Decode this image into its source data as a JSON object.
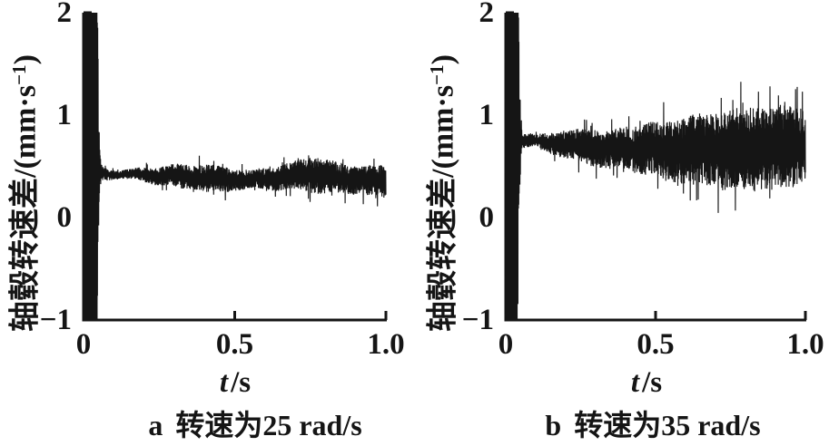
{
  "figure": {
    "background": "#ffffff",
    "ink": "#151515"
  },
  "chart_data": {
    "type": "line",
    "plots": [
      {
        "panel": "a",
        "caption": "a 转速为25 rad/s",
        "caption_label": "a",
        "caption_text": "转速为25 rad/s",
        "xlabel": "t/s",
        "xlabel_var": "t",
        "xlabel_rest": "/s",
        "ylabel": "轴毂转速差/(mm·s⁻¹)",
        "ylabel_main": "轴毂转速差/(mm·s",
        "ylabel_sup": "−1",
        "ylabel_close": ")",
        "xlim": [
          0,
          1
        ],
        "ylim": [
          -1,
          2
        ],
        "x_ticks": [
          {
            "value": 0,
            "label": "0"
          },
          {
            "value": 0.5,
            "label": "0.5"
          },
          {
            "value": 1,
            "label": "1.0"
          }
        ],
        "y_ticks": [
          {
            "value": 2,
            "label": "2"
          },
          {
            "value": 1,
            "label": "1"
          },
          {
            "value": 0,
            "label": "0"
          },
          {
            "value": -1,
            "label": "−1"
          }
        ],
        "signal": {
          "description": "Startup burst clipped to full axis range (-1 to 2) near t=0, then a dense noise band around 0.4 mm·s-1 that slowly widens and drifts down to about 0.35",
          "burst": {
            "t_start": 0,
            "t_end": 0.042,
            "clip_min": -1,
            "clip_max": 2,
            "decay_tau": 0.004
          },
          "envelope_keyframes": [
            [
              0.0,
              0.48,
              0.05
            ],
            [
              0.045,
              0.46,
              0.12
            ],
            [
              0.07,
              0.43,
              0.06
            ],
            [
              0.12,
              0.42,
              0.04
            ],
            [
              0.18,
              0.42,
              0.06
            ],
            [
              0.25,
              0.41,
              0.09
            ],
            [
              0.32,
              0.4,
              0.12
            ],
            [
              0.4,
              0.38,
              0.14
            ],
            [
              0.48,
              0.37,
              0.12
            ],
            [
              0.55,
              0.37,
              0.09
            ],
            [
              0.62,
              0.38,
              0.11
            ],
            [
              0.7,
              0.41,
              0.14
            ],
            [
              0.77,
              0.42,
              0.18
            ],
            [
              0.84,
              0.38,
              0.15
            ],
            [
              0.92,
              0.37,
              0.14
            ],
            [
              1.0,
              0.34,
              0.16
            ]
          ],
          "seed": 20250125,
          "n_samples": 1500
        }
      },
      {
        "panel": "b",
        "caption": "b 转速为35 rad/s",
        "caption_label": "b",
        "caption_text": "转速为35 rad/s",
        "xlabel": "t/s",
        "xlabel_var": "t",
        "xlabel_rest": "/s",
        "ylabel": "轴毂转速差/(mm·s⁻¹)",
        "ylabel_main": "轴毂转速差/(mm·s",
        "ylabel_sup": "−1",
        "ylabel_close": ")",
        "xlim": [
          0,
          1
        ],
        "ylim": [
          -1,
          2
        ],
        "x_ticks": [
          {
            "value": 0,
            "label": "0"
          },
          {
            "value": 0.5,
            "label": "0.5"
          },
          {
            "value": 1,
            "label": "1.0"
          }
        ],
        "y_ticks": [
          {
            "value": 2,
            "label": "2"
          },
          {
            "value": 1,
            "label": "1"
          },
          {
            "value": 0,
            "label": "0"
          },
          {
            "value": -1,
            "label": "−1"
          }
        ],
        "signal": {
          "description": "Startup burst clipped to full axis range (-1 to 2) near t=0, then a noise band around 0.7 mm·s-1 whose amplitude grows steadily, reaching roughly 0.15 to 1.2 by t=1.0",
          "burst": {
            "t_start": 0,
            "t_end": 0.038,
            "clip_min": -1,
            "clip_max": 2,
            "decay_tau": 0.004
          },
          "envelope_keyframes": [
            [
              0.0,
              0.72,
              0.05
            ],
            [
              0.05,
              0.76,
              0.08
            ],
            [
              0.1,
              0.74,
              0.06
            ],
            [
              0.16,
              0.73,
              0.11
            ],
            [
              0.24,
              0.7,
              0.16
            ],
            [
              0.32,
              0.68,
              0.19
            ],
            [
              0.4,
              0.68,
              0.21
            ],
            [
              0.48,
              0.67,
              0.26
            ],
            [
              0.56,
              0.64,
              0.31
            ],
            [
              0.64,
              0.67,
              0.34
            ],
            [
              0.72,
              0.65,
              0.38
            ],
            [
              0.8,
              0.67,
              0.41
            ],
            [
              0.88,
              0.68,
              0.41
            ],
            [
              0.94,
              0.7,
              0.4
            ],
            [
              1.0,
              0.7,
              0.37
            ]
          ],
          "seed": 77031,
          "n_samples": 1500
        }
      }
    ]
  }
}
